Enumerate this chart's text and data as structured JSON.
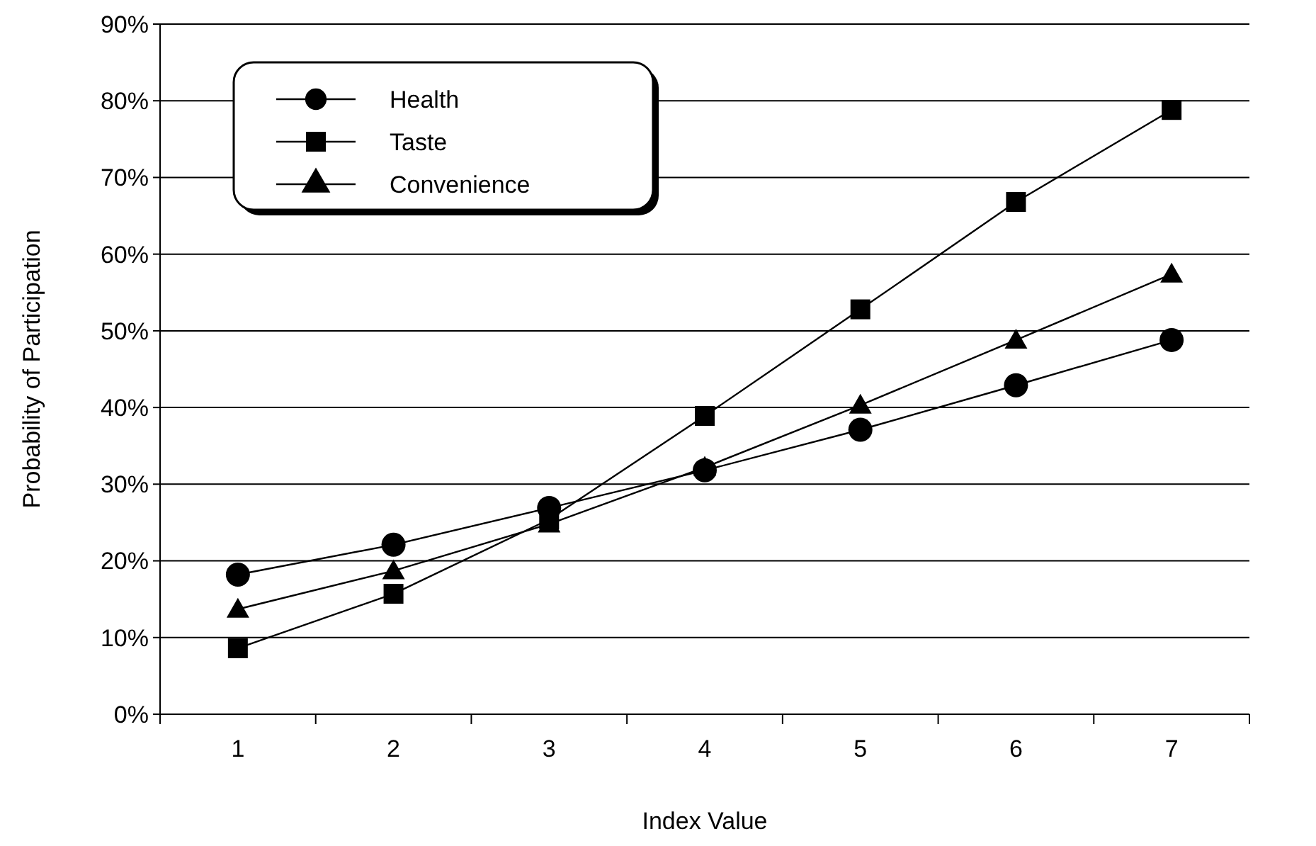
{
  "chart_data": {
    "type": "line",
    "xlabel": "Index Value",
    "ylabel": "Probability of Participation",
    "categories": [
      "1",
      "2",
      "3",
      "4",
      "5",
      "6",
      "7"
    ],
    "series": [
      {
        "name": "Health",
        "color": "#000000",
        "marker": "circle",
        "values": [
          18.2,
          22.1,
          26.9,
          31.8,
          37.1,
          42.9,
          48.8
        ]
      },
      {
        "name": "Taste",
        "color": "#000000",
        "marker": "square",
        "values": [
          8.6,
          15.7,
          25.4,
          38.9,
          52.8,
          66.8,
          78.8
        ]
      },
      {
        "name": "Convenience",
        "color": "#000000",
        "marker": "triangle",
        "values": [
          13.7,
          18.7,
          24.8,
          32.2,
          40.3,
          48.8,
          57.4
        ]
      }
    ],
    "ylim": [
      0,
      90
    ],
    "yticks": [
      {
        "value": 0,
        "label": "0%"
      },
      {
        "value": 10,
        "label": "10%"
      },
      {
        "value": 20,
        "label": "20%"
      },
      {
        "value": 30,
        "label": "30%"
      },
      {
        "value": 40,
        "label": "40%"
      },
      {
        "value": 50,
        "label": "50%"
      },
      {
        "value": 60,
        "label": "60%"
      },
      {
        "value": 70,
        "label": "70%"
      },
      {
        "value": 80,
        "label": "80%"
      },
      {
        "value": 90,
        "label": "90%"
      }
    ],
    "grid": "y",
    "legend": "top left",
    "line_style": "solid"
  }
}
